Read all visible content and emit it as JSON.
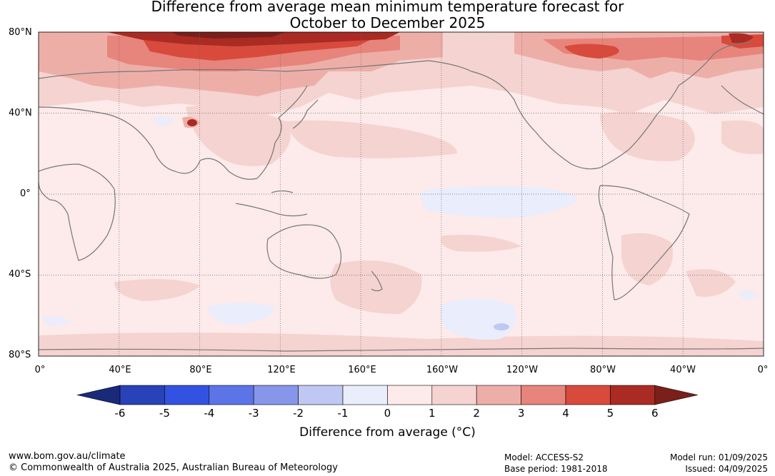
{
  "title_line1": "Difference from average mean minimum temperature forecast for",
  "title_line2": "October to December 2025",
  "map": {
    "lat_labels": [
      "80°N",
      "40°N",
      "0°",
      "40°S",
      "80°S"
    ],
    "lat_values": [
      80,
      40,
      0,
      -40,
      -80
    ],
    "lon_labels": [
      "0°",
      "40°E",
      "80°E",
      "120°E",
      "160°E",
      "160°W",
      "120°W",
      "80°W",
      "40°W",
      "0°"
    ],
    "lon_values": [
      0,
      40,
      80,
      120,
      160,
      200,
      240,
      280,
      320,
      360
    ],
    "lat_range": [
      -80,
      80
    ],
    "lon_range": [
      0,
      360
    ],
    "grid": true,
    "coastline_color": "#777777",
    "base_color": "#fcebea"
  },
  "colorbar": {
    "title": "Difference from average (°C)",
    "tick_labels": [
      "-6",
      "-5",
      "-4",
      "-3",
      "-2",
      "-1",
      "0",
      "1",
      "2",
      "3",
      "4",
      "5",
      "6"
    ],
    "colors": [
      "#192a7b",
      "#2843b7",
      "#3452e2",
      "#5b74e6",
      "#8697eb",
      "#bfc8f3",
      "#eaedfb",
      "#fcebea",
      "#f5d3d0",
      "#eeaea8",
      "#e7847b",
      "#d84a3c",
      "#aa2b24",
      "#7a1f1a"
    ]
  },
  "footer": {
    "url": "www.bom.gov.au/climate",
    "copyright": "© Commonwealth of Australia 2025, Australian Bureau of Meteorology",
    "model": "Model: ACCESS-S2",
    "base_period": "Base period: 1981-2018",
    "model_run": "Model run: 01/09/2025",
    "issued": "Issued: 04/09/2025"
  }
}
